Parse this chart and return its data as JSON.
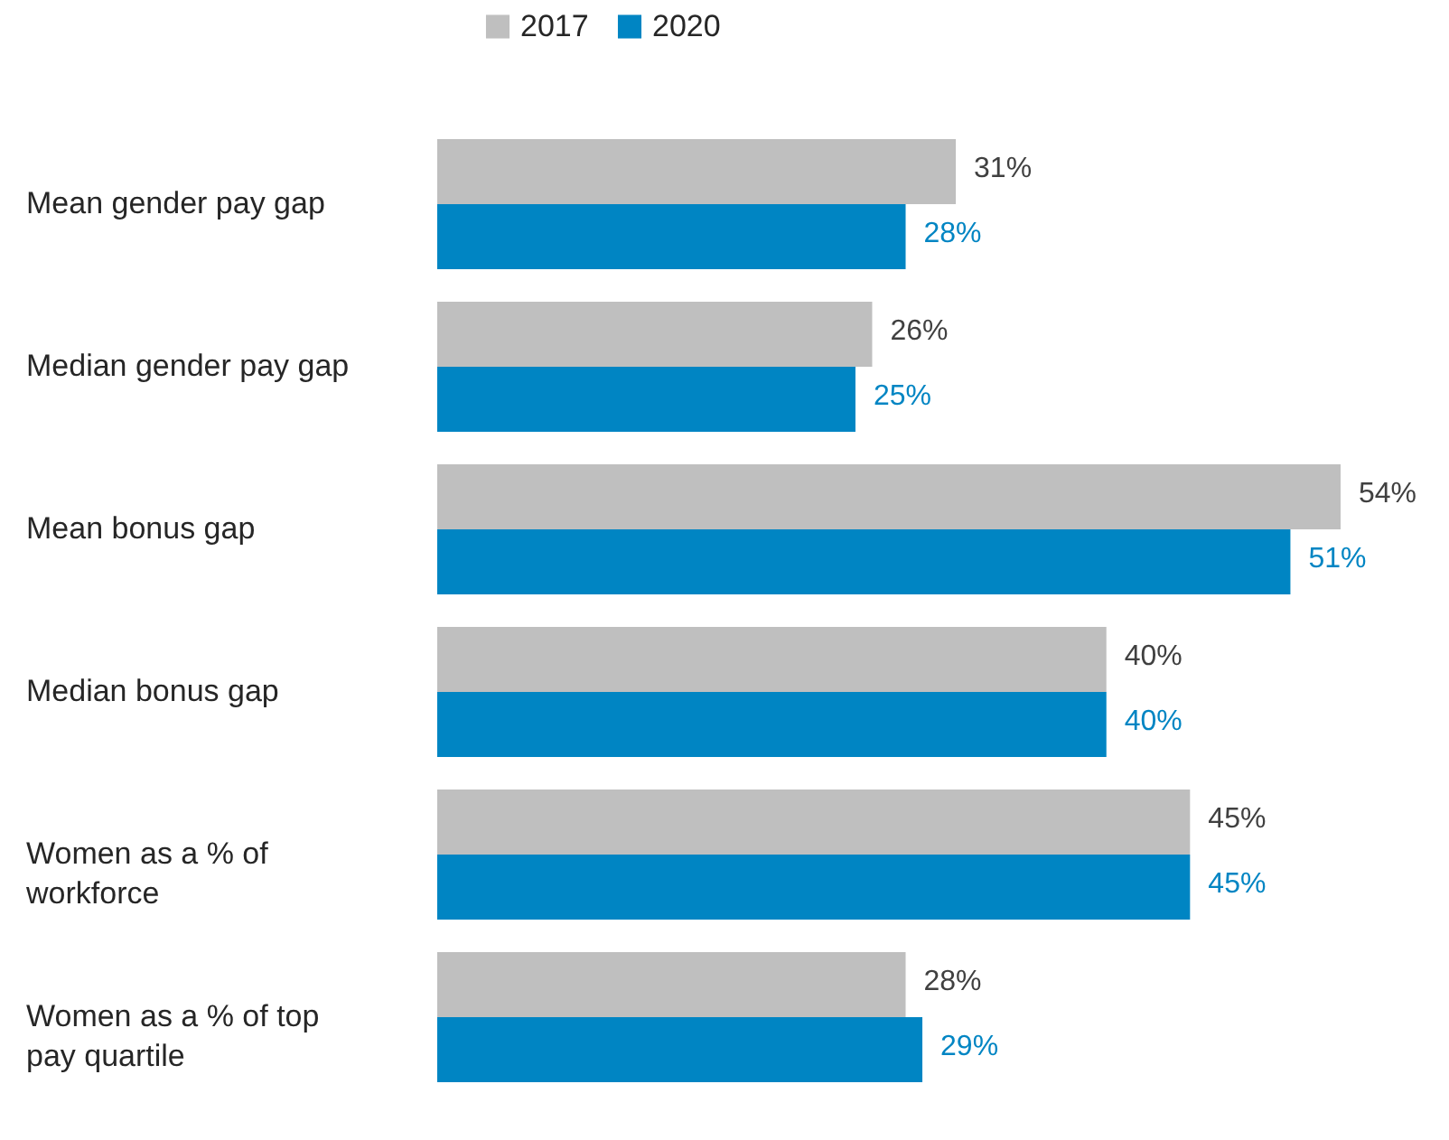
{
  "chart_data": {
    "type": "bar",
    "orientation": "horizontal",
    "legend": "top",
    "categories": [
      "Mean gender pay gap",
      "Median gender pay gap",
      "Mean bonus gap",
      "Median bonus gap",
      "Women as a % of workforce",
      "Women as a % of top pay quartile"
    ],
    "series": [
      {
        "name": "2017",
        "color": "#bfbfbf",
        "values": [
          31,
          26,
          54,
          40,
          45,
          28
        ],
        "value_labels": [
          "31%",
          "26%",
          "54%",
          "40%",
          "45%",
          "28%"
        ]
      },
      {
        "name": "2020",
        "color": "#0085c3",
        "values": [
          28,
          25,
          51,
          40,
          45,
          29
        ],
        "value_labels": [
          "28%",
          "25%",
          "51%",
          "40%",
          "45%",
          "29%"
        ]
      }
    ]
  }
}
